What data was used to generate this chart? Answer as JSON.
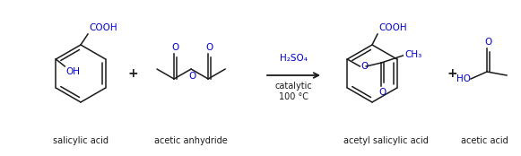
{
  "bg_color": "#ffffff",
  "line_color": "#1a1a1a",
  "atom_color": "#1a1a1a",
  "blue_color": "#0000cc",
  "label_color": "#1a1a1a",
  "figsize": [
    5.81,
    1.74
  ],
  "dpi": 100,
  "labels": {
    "salicylic_acid": "salicylic acid",
    "acetic_anhydride": "acetic anhydride",
    "acetyl_salicylic_acid": "acetyl salicylic acid",
    "acetic_acid": "acetic acid",
    "reagent1": "H₂SO₄",
    "reagent2": "catalytic",
    "reagent3": "100 °C"
  }
}
